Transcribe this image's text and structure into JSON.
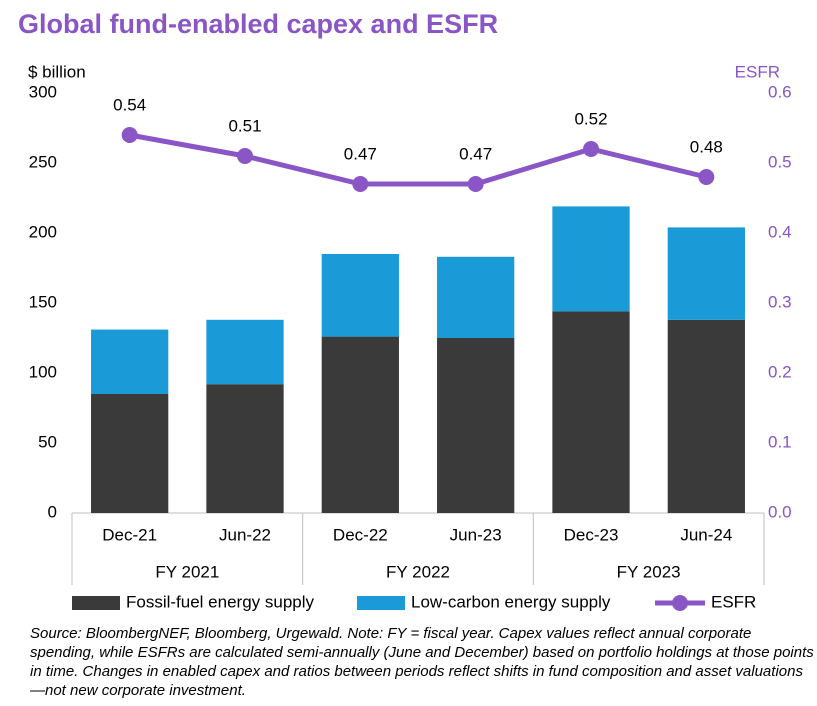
{
  "chart_data": {
    "type": "bar",
    "title": "Global fund-enabled capex and ESFR",
    "y_label": "$ billion",
    "y2_label": "ESFR",
    "categories": [
      "Dec-21",
      "Jun-22",
      "Dec-22",
      "Jun-23",
      "Dec-23",
      "Jun-24"
    ],
    "groups": [
      "FY 2021",
      "FY 2022",
      "FY 2023"
    ],
    "stacked": true,
    "series": [
      {
        "name": "Fossil-fuel energy supply",
        "color": "#3a3a3a",
        "values": [
          85,
          92,
          126,
          125,
          144,
          138
        ]
      },
      {
        "name": "Low-carbon energy supply",
        "color": "#1a9bd7",
        "values": [
          46,
          46,
          59,
          58,
          75,
          66
        ]
      },
      {
        "name": "ESFR",
        "type": "line",
        "axis": "y2",
        "color": "#8a55c5",
        "values": [
          0.54,
          0.51,
          0.47,
          0.47,
          0.52,
          0.48
        ]
      }
    ],
    "ylim": [
      0,
      300
    ],
    "yticks": [
      0,
      50,
      100,
      150,
      200,
      250,
      300
    ],
    "y2lim": [
      0,
      0.6
    ],
    "y2ticks": [
      {
        "value": 0,
        "label": "0.0"
      },
      0.1,
      0.2,
      0.3,
      0.4,
      0.5,
      0.6
    ],
    "note": "Source: BloombergNEF, Bloomberg, Urgewald. Note: FY = fiscal year. Capex values reflect annual corporate spending, while ESFRs are calculated semi-annually (June and December) based on portfolio holdings at those points in time. Changes in enabled capex and ratios between periods reflect shifts in fund composition and asset valuations—not new corporate investment."
  }
}
